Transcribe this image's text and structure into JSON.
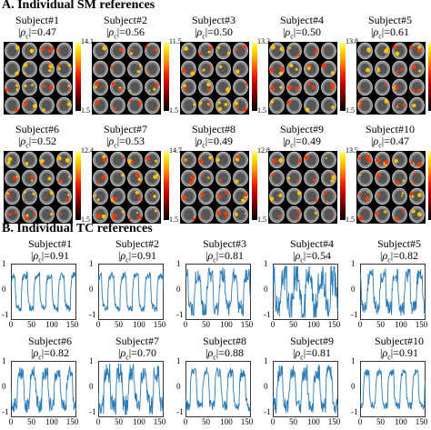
{
  "figure": {
    "sectionA_title": "A. Individual SM references",
    "sectionB_title": "B. Individual TC references"
  },
  "sm_panels": [
    {
      "subject": "Subject#1",
      "rho": "=0.47",
      "cmax": "14.1",
      "cmin": "1.5"
    },
    {
      "subject": "Subject#2",
      "rho": "=0.56",
      "cmax": "11.5",
      "cmin": "1.5"
    },
    {
      "subject": "Subject#3",
      "rho": "=0.50",
      "cmax": "13.3",
      "cmin": "1.5"
    },
    {
      "subject": "Subject#4",
      "rho": "=0.50",
      "cmax": "13.8",
      "cmin": "1.5"
    },
    {
      "subject": "Subject#5",
      "rho": "=0.61",
      "cmax": "15.2",
      "cmin": "1.5"
    },
    {
      "subject": "Subject#6",
      "rho": "=0.52",
      "cmax": "12.4",
      "cmin": "1.5"
    },
    {
      "subject": "Subject#7",
      "rho": "=0.53",
      "cmax": "14.7",
      "cmin": "1.5"
    },
    {
      "subject": "Subject#8",
      "rho": "=0.49",
      "cmax": "12.8",
      "cmin": "1.5"
    },
    {
      "subject": "Subject#9",
      "rho": "=0.49",
      "cmax": "13.5",
      "cmin": "1.5"
    },
    {
      "subject": "Subject#10",
      "rho": "=0.47",
      "cmax": "13.4",
      "cmin": "1.5"
    }
  ],
  "tc_panels": [
    {
      "subject": "Subject#1",
      "rho": "=0.91"
    },
    {
      "subject": "Subject#2",
      "rho": "=0.91"
    },
    {
      "subject": "Subject#3",
      "rho": "=0.81"
    },
    {
      "subject": "Subject#4",
      "rho": "=0.54"
    },
    {
      "subject": "Subject#5",
      "rho": "=0.82"
    },
    {
      "subject": "Subject#6",
      "rho": "=0.82"
    },
    {
      "subject": "Subject#7",
      "rho": "=0.70"
    },
    {
      "subject": "Subject#8",
      "rho": "=0.88"
    },
    {
      "subject": "Subject#9",
      "rho": "=0.81"
    },
    {
      "subject": "Subject#10",
      "rho": "=0.91"
    }
  ],
  "chart_data": {
    "type": "line",
    "xlim": [
      0,
      160
    ],
    "ylim": [
      -1,
      1
    ],
    "xticks": [
      "0",
      "50",
      "100",
      "150"
    ],
    "yticks": [
      "1",
      "0",
      "-1"
    ],
    "line_color": "#2c7bb6",
    "block_pattern": {
      "period": 30,
      "on": 15,
      "n_points": 160,
      "phase": 4
    },
    "series": [
      {
        "noise": 0.14
      },
      {
        "noise": 0.14
      },
      {
        "noise": 0.32
      },
      {
        "noise": 0.6
      },
      {
        "noise": 0.3
      },
      {
        "noise": 0.3
      },
      {
        "noise": 0.42
      },
      {
        "noise": 0.22
      },
      {
        "noise": 0.32
      },
      {
        "noise": 0.14
      }
    ]
  }
}
